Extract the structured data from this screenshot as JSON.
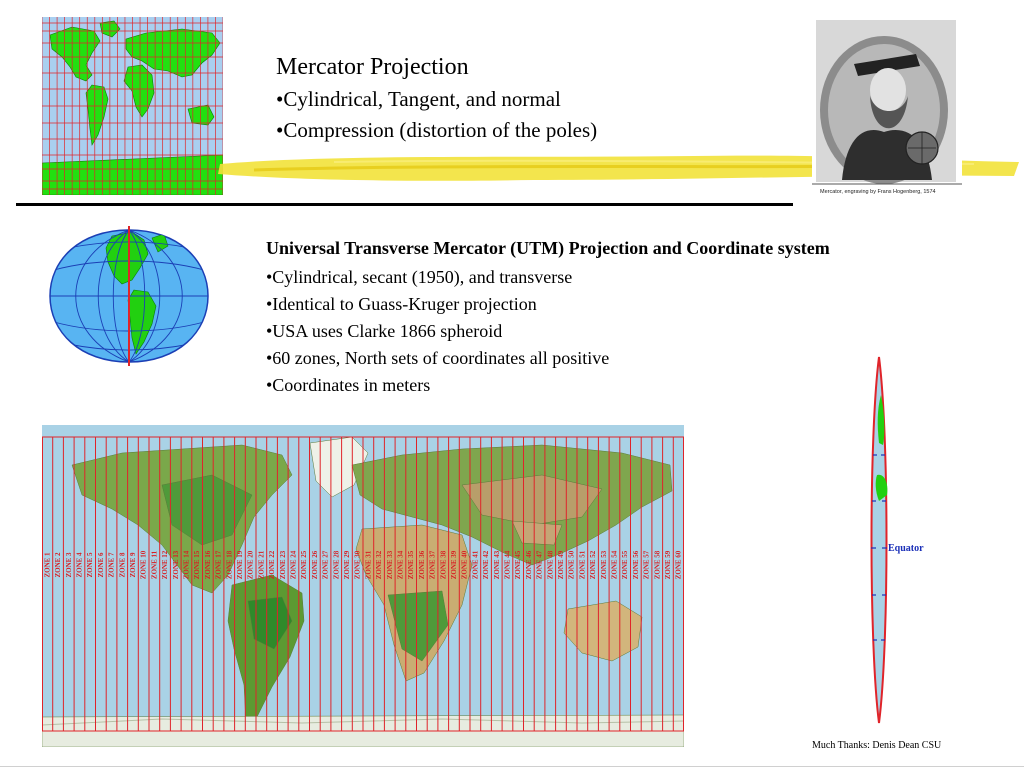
{
  "slide": {
    "title": "Mercator Projection",
    "bullets_top": [
      "•Cylindrical, Tangent, and normal",
      "•Compression (distortion of the poles)"
    ],
    "utm_title": "Universal Transverse Mercator (UTM) Projection and Coordinate system",
    "bullets_utm": [
      "•Cylindrical, secant (1950), and transverse",
      "•Identical to Guass-Kruger projection",
      "•USA uses Clarke 1866 spheroid",
      "•60 zones, North sets of coordinates all positive",
      "•Coordinates in meters"
    ],
    "portrait_caption": "Mercator, engraving by Frans Hogenberg, 1574",
    "equator_label": "Equator",
    "credit": "Much Thanks: Denis Dean CSU"
  },
  "utm_zones": [
    "ZONE 1",
    "ZONE 2",
    "ZONE 3",
    "ZONE 4",
    "ZONE 5",
    "ZONE 6",
    "ZONE 7",
    "ZONE 8",
    "ZONE 9",
    "ZONE 10",
    "ZONE 11",
    "ZONE 12",
    "ZONE 13",
    "ZONE 14",
    "ZONE 15",
    "ZONE 16",
    "ZONE 17",
    "ZONE 18",
    "ZONE 19",
    "ZONE 20",
    "ZONE 21",
    "ZONE 22",
    "ZONE 23",
    "ZONE 24",
    "ZONE 25",
    "ZONE 26",
    "ZONE 27",
    "ZONE 28",
    "ZONE 29",
    "ZONE 30",
    "ZONE 31",
    "ZONE 32",
    "ZONE 33",
    "ZONE 34",
    "ZONE 35",
    "ZONE 36",
    "ZONE 37",
    "ZONE 38",
    "ZONE 39",
    "ZONE 40",
    "ZONE 41",
    "ZONE 42",
    "ZONE 43",
    "ZONE 44",
    "ZONE 45",
    "ZONE 46",
    "ZONE 47",
    "ZONE 48",
    "ZONE 49",
    "ZONE 50",
    "ZONE 51",
    "ZONE 52",
    "ZONE 53",
    "ZONE 54",
    "ZONE 55",
    "ZONE 56",
    "ZONE 57",
    "ZONE 58",
    "ZONE 59",
    "ZONE 60"
  ],
  "colors": {
    "grid_red": "#e0242a",
    "ocean": "#a9d2e6",
    "land_green": "#22e010",
    "highlighter": "#f2e23a",
    "equator_blue": "#1a2fb8"
  }
}
